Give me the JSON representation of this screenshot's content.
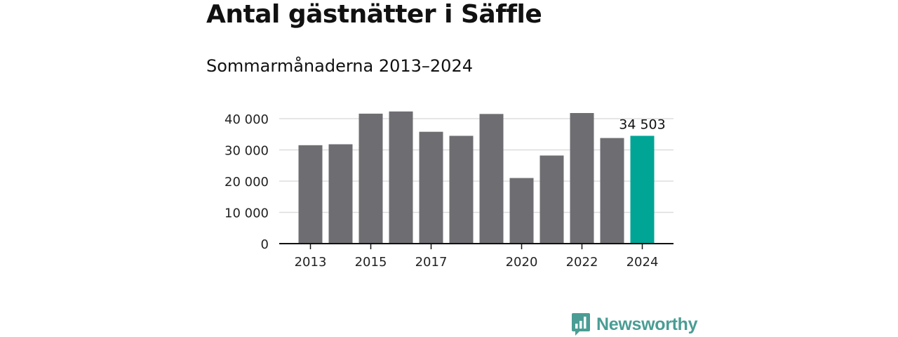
{
  "chart_data": {
    "type": "bar",
    "title": "Antal gästnätter i Säffle",
    "subtitle": "Sommarmånaderna 2013–2024",
    "categories": [
      "2013",
      "2014",
      "2015",
      "2016",
      "2017",
      "2018",
      "2019",
      "2020",
      "2021",
      "2022",
      "2023",
      "2024"
    ],
    "values": [
      31500,
      31800,
      41600,
      42300,
      35800,
      34500,
      41500,
      21000,
      28200,
      41800,
      33800,
      34503
    ],
    "x_tick_labels": [
      "2013",
      "",
      "2015",
      "",
      "2017",
      "",
      "",
      "2020",
      "",
      "2022",
      "",
      "2024"
    ],
    "y_ticks": [
      0,
      10000,
      20000,
      30000,
      40000
    ],
    "y_tick_labels": [
      "0",
      "10 000",
      "20 000",
      "30 000",
      "40 000"
    ],
    "ylim": [
      0,
      44000
    ],
    "highlight_label": "34 503",
    "highlight_index": 11,
    "colors": {
      "bar": "#6e6d72",
      "highlight": "#00a596",
      "grid": "#dddddd",
      "axis": "#111111"
    },
    "grid": true,
    "legend": "none"
  },
  "branding": {
    "logo_text": "Newsworthy",
    "logo_color": "#4a9d94",
    "logo_icon": "chart-bubble-icon"
  }
}
